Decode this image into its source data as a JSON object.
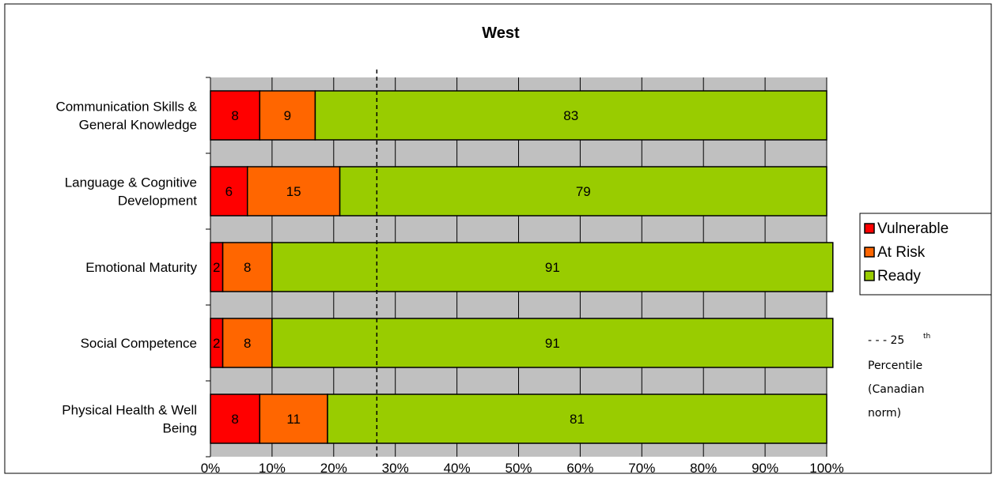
{
  "chart_data": {
    "type": "bar",
    "orientation": "horizontal",
    "stacked": "percent",
    "title": "West",
    "categories": [
      [
        "Communication Skills &",
        "General Knowledge"
      ],
      [
        "Language & Cognitive",
        "Development"
      ],
      [
        "Emotional Maturity"
      ],
      [
        "Social Competence"
      ],
      [
        "Physical Health & Well",
        "Being"
      ]
    ],
    "series": [
      {
        "name": "Vulnerable",
        "color": "#ff0000",
        "values": [
          8,
          6,
          2,
          2,
          8
        ]
      },
      {
        "name": "At Risk",
        "color": "#ff6600",
        "values": [
          9,
          15,
          8,
          8,
          11
        ]
      },
      {
        "name": "Ready",
        "color": "#99cc00",
        "values": [
          83,
          79,
          91,
          91,
          81
        ]
      }
    ],
    "xlim": [
      0,
      100
    ],
    "x_ticks": [
      "0%",
      "10%",
      "20%",
      "30%",
      "40%",
      "50%",
      "60%",
      "70%",
      "80%",
      "90%",
      "100%"
    ],
    "grid": true,
    "plot_background": "#c0c0c0",
    "legend_position": "right",
    "reference_line": {
      "value": 27,
      "style": "dashed",
      "label": [
        "- - - 25",
        "th",
        "Percentile",
        "(Canadian",
        "norm)"
      ]
    }
  }
}
